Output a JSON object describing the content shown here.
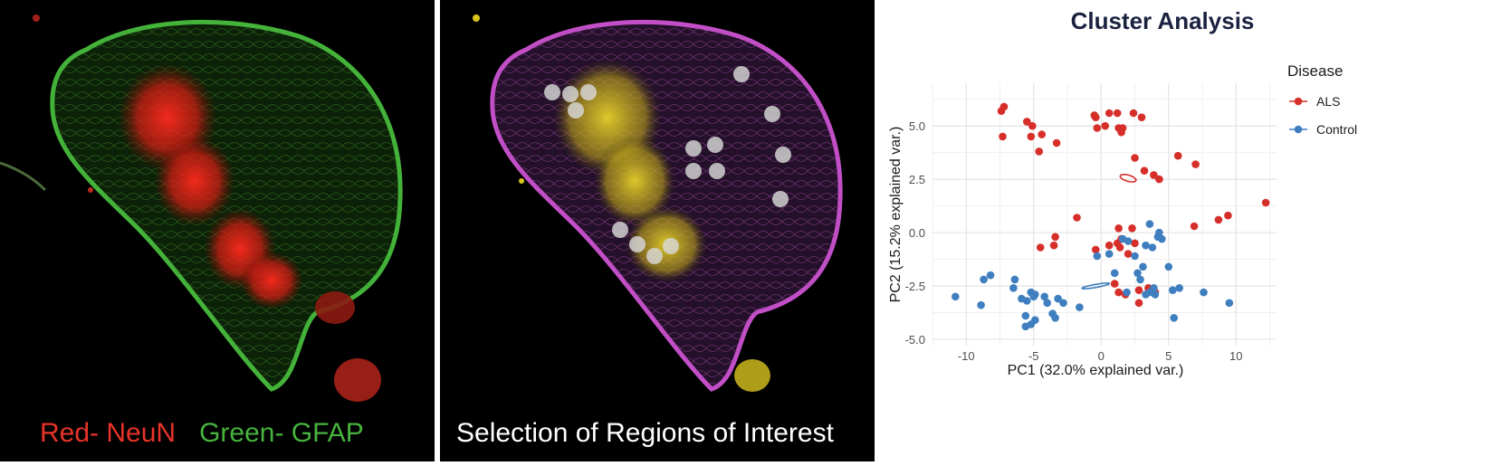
{
  "panel_a": {
    "caption_red": "Red- NeuN",
    "caption_green": "Green- GFAP",
    "red_color": "#e8342a",
    "green_color": "#47b33e"
  },
  "panel_b": {
    "caption": "Selection of Regions of Interest",
    "roi_color": "#d8d8d8",
    "magenta_color": "#c24fc7",
    "yellow_color": "#d9c51e"
  },
  "chart_data": {
    "type": "scatter",
    "title": "Cluster Analysis",
    "xlabel": "PC1 (32.0% explained var.)",
    "ylabel": "PC2 (15.2% explained var.)",
    "xlim": [
      -12.5,
      13
    ],
    "ylim": [
      -5.3,
      7.0
    ],
    "xticks": [
      -10,
      -5,
      0,
      5,
      10
    ],
    "yticks": [
      -5.0,
      -2.5,
      0.0,
      2.5,
      5.0
    ],
    "ytick_labels": [
      "-5.0",
      "-2.5",
      "0.0",
      "2.5",
      "5.0"
    ],
    "grid": true,
    "legend_title": "Disease",
    "legend_position": "top-right",
    "series": [
      {
        "name": "ALS",
        "color": "#d62f2a",
        "points": [
          [
            -7.2,
            5.9
          ],
          [
            -7.4,
            5.7
          ],
          [
            -7.3,
            4.5
          ],
          [
            -5.5,
            5.2
          ],
          [
            -5.2,
            4.5
          ],
          [
            -5.1,
            5.0
          ],
          [
            -4.6,
            3.8
          ],
          [
            -4.4,
            4.6
          ],
          [
            -3.3,
            4.2
          ],
          [
            -4.5,
            -0.7
          ],
          [
            -3.5,
            -0.6
          ],
          [
            -3.4,
            -0.2
          ],
          [
            -1.8,
            0.7
          ],
          [
            -0.5,
            5.5
          ],
          [
            -0.4,
            5.4
          ],
          [
            -0.3,
            4.9
          ],
          [
            0.6,
            5.6
          ],
          [
            0.3,
            5.0
          ],
          [
            1.2,
            5.6
          ],
          [
            1.3,
            4.9
          ],
          [
            1.6,
            4.9
          ],
          [
            1.5,
            4.7
          ],
          [
            2.4,
            5.6
          ],
          [
            3.0,
            5.4
          ],
          [
            2.5,
            3.5
          ],
          [
            3.2,
            2.9
          ],
          [
            3.9,
            2.7
          ],
          [
            4.3,
            2.5
          ],
          [
            5.7,
            3.6
          ],
          [
            7.0,
            3.2
          ],
          [
            8.7,
            0.6
          ],
          [
            9.4,
            0.8
          ],
          [
            12.2,
            1.4
          ],
          [
            6.9,
            0.3
          ],
          [
            1.3,
            0.2
          ],
          [
            2.3,
            0.2
          ],
          [
            0.6,
            -0.6
          ],
          [
            1.2,
            -0.5
          ],
          [
            1.4,
            -0.7
          ],
          [
            2.0,
            -1.0
          ],
          [
            2.5,
            -0.5
          ],
          [
            1.3,
            -2.8
          ],
          [
            1.8,
            -2.9
          ],
          [
            2.8,
            -2.7
          ],
          [
            3.5,
            -2.6
          ],
          [
            1.0,
            -2.4
          ],
          [
            4.0,
            -2.8
          ],
          [
            2.8,
            -3.3
          ],
          [
            -0.4,
            -0.8
          ],
          [
            1.5,
            -0.3
          ]
        ]
      },
      {
        "name": "Control",
        "color": "#3f7fbf",
        "points": [
          [
            -10.8,
            -3.0
          ],
          [
            -8.9,
            -3.4
          ],
          [
            -8.7,
            -2.2
          ],
          [
            -8.2,
            -2.0
          ],
          [
            -6.4,
            -2.2
          ],
          [
            -6.5,
            -2.6
          ],
          [
            -5.9,
            -3.1
          ],
          [
            -5.6,
            -3.9
          ],
          [
            -5.5,
            -3.2
          ],
          [
            -5.2,
            -2.8
          ],
          [
            -5.0,
            -3.0
          ],
          [
            -4.9,
            -2.9
          ],
          [
            -5.2,
            -4.3
          ],
          [
            -4.9,
            -4.1
          ],
          [
            -4.2,
            -3.0
          ],
          [
            -4.0,
            -3.3
          ],
          [
            -3.6,
            -3.8
          ],
          [
            -3.4,
            -4.0
          ],
          [
            -3.2,
            -3.1
          ],
          [
            -2.8,
            -3.3
          ],
          [
            -1.6,
            -3.5
          ],
          [
            -0.3,
            -1.1
          ],
          [
            0.6,
            -1.0
          ],
          [
            1.6,
            -0.3
          ],
          [
            1.0,
            -1.9
          ],
          [
            2.0,
            -0.4
          ],
          [
            2.5,
            -1.1
          ],
          [
            2.7,
            -1.9
          ],
          [
            2.9,
            -2.2
          ],
          [
            3.1,
            -1.6
          ],
          [
            3.3,
            -0.6
          ],
          [
            3.6,
            0.4
          ],
          [
            3.8,
            -0.7
          ],
          [
            4.3,
            0.0
          ],
          [
            4.2,
            -0.2
          ],
          [
            4.5,
            -0.3
          ],
          [
            5.0,
            -1.6
          ],
          [
            3.9,
            -2.6
          ],
          [
            4.0,
            -2.9
          ],
          [
            5.3,
            -2.7
          ],
          [
            5.8,
            -2.6
          ],
          [
            7.6,
            -2.8
          ],
          [
            9.5,
            -3.3
          ],
          [
            5.4,
            -4.0
          ],
          [
            1.9,
            -2.8
          ],
          [
            3.3,
            -2.9
          ],
          [
            3.6,
            -2.8
          ],
          [
            -5.6,
            -4.4
          ]
        ]
      }
    ],
    "ellipses": [
      {
        "series": "ALS",
        "cx": 2.0,
        "cy": 2.55,
        "rx": 9.0,
        "ry": 3.4,
        "angle_deg": -16
      },
      {
        "series": "Control",
        "cx": -0.4,
        "cy": -2.5,
        "rx": 15.3,
        "ry": 1.7,
        "angle_deg": 10
      }
    ]
  }
}
